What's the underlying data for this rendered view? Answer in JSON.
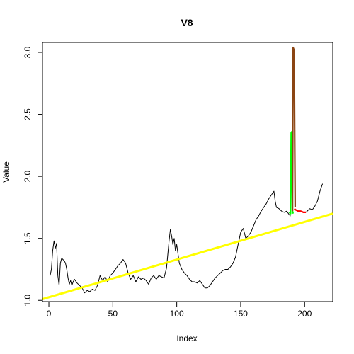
{
  "chart_data": {
    "type": "line",
    "title": "V8",
    "xlabel": "Index",
    "ylabel": "Value",
    "xlim": [
      -5,
      222
    ],
    "ylim": [
      0.99,
      3.08
    ],
    "x_ticks": [
      0,
      50,
      100,
      150,
      200
    ],
    "x_tick_labels": [
      "0",
      "50",
      "100",
      "150",
      "200"
    ],
    "y_ticks": [
      1.0,
      1.5,
      2.0,
      2.5,
      3.0
    ],
    "y_tick_labels": [
      "1.0",
      "1.5",
      "2.0",
      "2.5",
      "3.0"
    ],
    "grid": false,
    "series": [
      {
        "color": "#000000",
        "x": [
          1,
          2,
          3,
          4,
          5,
          6,
          7,
          8,
          9,
          10,
          11,
          12,
          13,
          14,
          15,
          16,
          17,
          18,
          19,
          20,
          22,
          24,
          26,
          28,
          30,
          32,
          34,
          36,
          38,
          40,
          42,
          44,
          46,
          48,
          50,
          52,
          54,
          56,
          58,
          60,
          62,
          64,
          66,
          68,
          70,
          72,
          74,
          76,
          78,
          80,
          82,
          84,
          86,
          88,
          90,
          92,
          94,
          95,
          96,
          97,
          98,
          99,
          100,
          102,
          104,
          106,
          108,
          110,
          112,
          114,
          116,
          118,
          120,
          122,
          124,
          126,
          128,
          130,
          132,
          134,
          136,
          138,
          140,
          142,
          144,
          146,
          148,
          150,
          152,
          154,
          156,
          158,
          160,
          162,
          164,
          166,
          168,
          170,
          172,
          174,
          176,
          177,
          178,
          180,
          182,
          184,
          186,
          188,
          189
        ],
        "y": [
          1.2,
          1.25,
          1.4,
          1.48,
          1.42,
          1.46,
          1.2,
          1.12,
          1.3,
          1.34,
          1.33,
          1.32,
          1.3,
          1.25,
          1.18,
          1.13,
          1.16,
          1.12,
          1.15,
          1.17,
          1.14,
          1.12,
          1.1,
          1.06,
          1.08,
          1.07,
          1.09,
          1.08,
          1.12,
          1.2,
          1.16,
          1.19,
          1.15,
          1.2,
          1.22,
          1.25,
          1.28,
          1.3,
          1.33,
          1.3,
          1.22,
          1.17,
          1.2,
          1.15,
          1.19,
          1.17,
          1.18,
          1.16,
          1.13,
          1.18,
          1.2,
          1.17,
          1.2,
          1.19,
          1.18,
          1.26,
          1.48,
          1.57,
          1.52,
          1.45,
          1.5,
          1.4,
          1.45,
          1.3,
          1.25,
          1.22,
          1.2,
          1.17,
          1.15,
          1.15,
          1.14,
          1.16,
          1.13,
          1.1,
          1.1,
          1.12,
          1.15,
          1.18,
          1.2,
          1.22,
          1.24,
          1.25,
          1.25,
          1.27,
          1.3,
          1.35,
          1.45,
          1.55,
          1.58,
          1.5,
          1.52,
          1.55,
          1.6,
          1.65,
          1.68,
          1.72,
          1.75,
          1.78,
          1.82,
          1.85,
          1.88,
          1.8,
          1.75,
          1.74,
          1.72,
          1.71,
          1.72,
          1.69,
          1.68
        ]
      },
      {
        "color": "#00ff00",
        "x": [
          188,
          189,
          189.5,
          190,
          190.5,
          191
        ],
        "y": [
          1.71,
          1.7,
          2.35,
          2.36,
          1.72,
          1.7
        ]
      },
      {
        "color": "#8b4513",
        "x": [
          190.5,
          191,
          191.3,
          191.8,
          192.2,
          192.6
        ],
        "y": [
          1.72,
          3.04,
          3.03,
          3.02,
          2.38,
          1.75
        ]
      },
      {
        "color": "#ff0000",
        "x": [
          192,
          193,
          195,
          197,
          199,
          201
        ],
        "y": [
          1.74,
          1.73,
          1.72,
          1.72,
          1.71,
          1.71
        ]
      },
      {
        "color": "#000000",
        "x": [
          201,
          202,
          204,
          206,
          208,
          210,
          212,
          214
        ],
        "y": [
          1.71,
          1.72,
          1.74,
          1.73,
          1.76,
          1.8,
          1.88,
          1.94
        ]
      },
      {
        "color": "#ffff00",
        "x": [
          -5,
          222
        ],
        "y": [
          1.01,
          1.7
        ]
      }
    ]
  }
}
